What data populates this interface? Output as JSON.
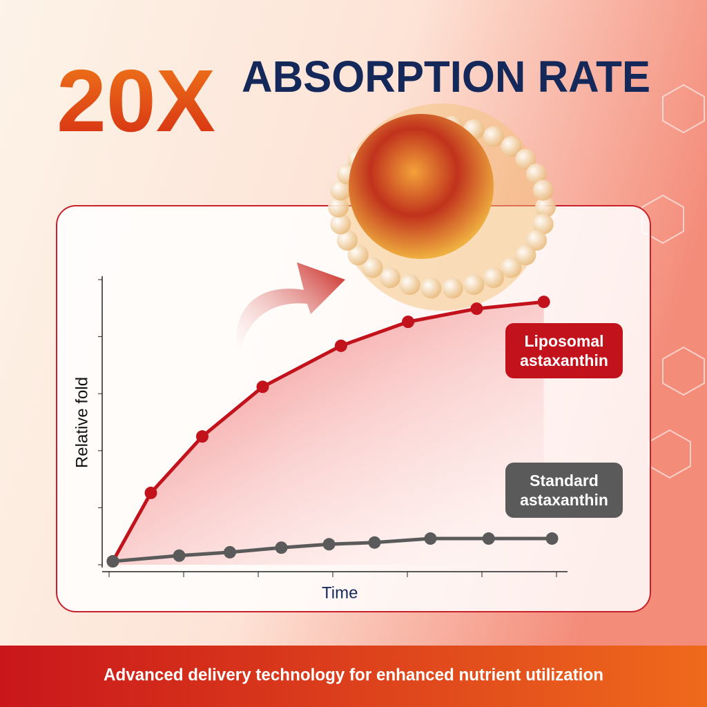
{
  "header": {
    "highlight": "20X",
    "title": "ABSORPTION RATE"
  },
  "chart_data": {
    "type": "line",
    "x_label": "Time",
    "y_label": "Relative fold",
    "xlim": [
      0,
      6
    ],
    "ylim": [
      0,
      5
    ],
    "series": [
      {
        "name": "Liposomal astaxanthin",
        "color": "#c2121c",
        "x": [
          0.05,
          0.56,
          1.25,
          2.06,
          3.11,
          4.01,
          4.93,
          5.83
        ],
        "values": [
          0.06,
          1.26,
          2.25,
          3.12,
          3.84,
          4.26,
          4.49,
          4.61
        ]
      },
      {
        "name": "Standard astaxanthin",
        "color": "#5a5a5a",
        "x": [
          0.05,
          0.94,
          1.62,
          2.31,
          2.95,
          3.56,
          4.31,
          5.09,
          5.94
        ],
        "values": [
          0.06,
          0.16,
          0.22,
          0.3,
          0.36,
          0.39,
          0.46,
          0.46,
          0.46
        ]
      }
    ]
  },
  "footer": {
    "text": "Advanced delivery technology for enhanced nutrient utilization"
  }
}
